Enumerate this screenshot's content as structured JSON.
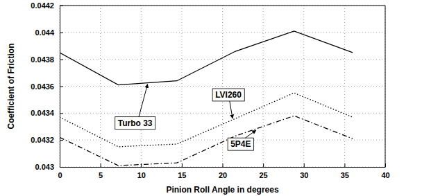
{
  "chart_data": {
    "type": "line",
    "x_label": "Pinion Roll Angle in degrees",
    "y_label": "Coefficient of Friction",
    "x": [
      0,
      7.2,
      14.4,
      21.6,
      28.8,
      36
    ],
    "series": [
      {
        "name": "Turbo 33",
        "color": "#000000",
        "line_style": "solid",
        "values": [
          0.04385,
          0.04361,
          0.04364,
          0.04386,
          0.04401,
          0.04385
        ]
      },
      {
        "name": "LVI260",
        "color": "#000000",
        "line_style": "dotted",
        "values": [
          0.04337,
          0.04315,
          0.04317,
          0.04336,
          0.04355,
          0.04337
        ]
      },
      {
        "name": "5P4E",
        "color": "#000000",
        "line_style": "dashdot",
        "values": [
          0.04322,
          0.04301,
          0.04303,
          0.04323,
          0.04338,
          0.04321
        ]
      }
    ],
    "xlim": [
      0,
      40
    ],
    "xticks": [
      0,
      5,
      10,
      15,
      20,
      25,
      30,
      35,
      40
    ],
    "ylim": [
      0.043,
      0.0442
    ],
    "yticks": [
      0.043,
      0.0432,
      0.0434,
      0.0436,
      0.0438,
      0.044,
      0.0442
    ],
    "grid": true
  }
}
